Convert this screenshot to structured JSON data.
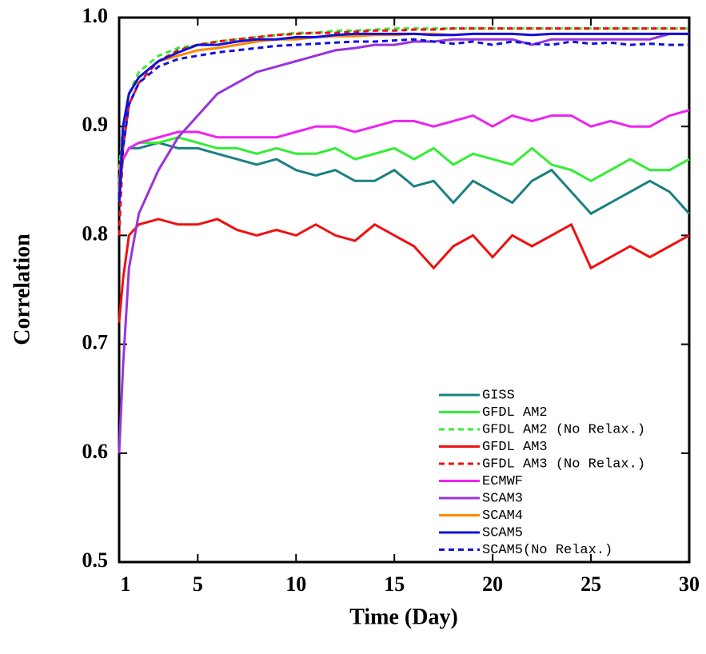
{
  "chart_data": {
    "type": "line",
    "xlabel": "Time (Day)",
    "ylabel": "Correlation",
    "x": [
      1,
      1.2,
      1.5,
      2,
      3,
      4,
      5,
      6,
      7,
      8,
      9,
      10,
      11,
      12,
      13,
      14,
      15,
      16,
      17,
      18,
      19,
      20,
      21,
      22,
      23,
      24,
      25,
      26,
      27,
      28,
      29,
      30
    ],
    "xlim": [
      1,
      30
    ],
    "xticks": [
      1,
      5,
      10,
      15,
      20,
      25,
      30
    ],
    "ylim": [
      0.5,
      1.0
    ],
    "yticks": [
      0.5,
      0.6,
      0.7,
      0.8,
      0.9,
      {
        "value": 1.0,
        "label": "1.0"
      }
    ],
    "series": [
      {
        "name": "GISS",
        "color": "#1a8080",
        "dashed": false,
        "values": [
          0.85,
          0.87,
          0.88,
          0.88,
          0.885,
          0.88,
          0.88,
          0.875,
          0.87,
          0.865,
          0.87,
          0.86,
          0.855,
          0.86,
          0.85,
          0.85,
          0.86,
          0.845,
          0.85,
          0.83,
          0.85,
          0.84,
          0.83,
          0.85,
          0.86,
          0.84,
          0.82,
          0.83,
          0.84,
          0.85,
          0.84,
          0.82
        ]
      },
      {
        "name": "GFDL AM2",
        "color": "#33ee33",
        "dashed": false,
        "values": [
          0.86,
          0.87,
          0.88,
          0.885,
          0.885,
          0.89,
          0.885,
          0.88,
          0.88,
          0.875,
          0.88,
          0.875,
          0.875,
          0.88,
          0.87,
          0.875,
          0.88,
          0.87,
          0.88,
          0.865,
          0.875,
          0.87,
          0.865,
          0.88,
          0.865,
          0.86,
          0.85,
          0.86,
          0.87,
          0.86,
          0.86,
          0.87
        ]
      },
      {
        "name": "GFDL AM2 (No Relax.)",
        "color": "#33ee33",
        "dashed": true,
        "values": [
          0.86,
          0.9,
          0.93,
          0.95,
          0.965,
          0.972,
          0.975,
          0.978,
          0.98,
          0.982,
          0.984,
          0.986,
          0.986,
          0.988,
          0.988,
          0.989,
          0.99,
          0.99,
          0.99,
          0.99,
          0.99,
          0.99,
          0.99,
          0.99,
          0.99,
          0.99,
          0.99,
          0.99,
          0.99,
          0.99,
          0.99,
          0.99
        ]
      },
      {
        "name": "GFDL AM3",
        "color": "#ee1111",
        "dashed": false,
        "values": [
          0.72,
          0.76,
          0.8,
          0.81,
          0.815,
          0.81,
          0.81,
          0.815,
          0.805,
          0.8,
          0.805,
          0.8,
          0.81,
          0.8,
          0.795,
          0.81,
          0.8,
          0.79,
          0.77,
          0.79,
          0.8,
          0.78,
          0.8,
          0.79,
          0.8,
          0.81,
          0.77,
          0.78,
          0.79,
          0.78,
          0.79,
          0.8
        ]
      },
      {
        "name": "GFDL AM3 (No Relax.)",
        "color": "#ee1111",
        "dashed": true,
        "values": [
          0.8,
          0.88,
          0.92,
          0.94,
          0.96,
          0.97,
          0.975,
          0.978,
          0.98,
          0.982,
          0.984,
          0.985,
          0.986,
          0.986,
          0.987,
          0.988,
          0.988,
          0.989,
          0.989,
          0.99,
          0.99,
          0.99,
          0.99,
          0.99,
          0.99,
          0.99,
          0.99,
          0.99,
          0.99,
          0.99,
          0.99,
          0.99
        ]
      },
      {
        "name": "ECMWF",
        "color": "#ee22ee",
        "dashed": false,
        "values": [
          0.86,
          0.87,
          0.88,
          0.885,
          0.89,
          0.895,
          0.895,
          0.89,
          0.89,
          0.89,
          0.89,
          0.895,
          0.9,
          0.9,
          0.895,
          0.9,
          0.905,
          0.905,
          0.9,
          0.905,
          0.91,
          0.9,
          0.91,
          0.905,
          0.91,
          0.91,
          0.9,
          0.905,
          0.9,
          0.9,
          0.91,
          0.915
        ]
      },
      {
        "name": "SCAM3",
        "color": "#9933dd",
        "dashed": false,
        "values": [
          0.6,
          0.68,
          0.77,
          0.82,
          0.86,
          0.89,
          0.91,
          0.93,
          0.94,
          0.95,
          0.955,
          0.96,
          0.965,
          0.97,
          0.972,
          0.975,
          0.975,
          0.978,
          0.978,
          0.98,
          0.98,
          0.98,
          0.98,
          0.975,
          0.98,
          0.98,
          0.98,
          0.98,
          0.98,
          0.98,
          0.985,
          0.985
        ]
      },
      {
        "name": "SCAM4",
        "color": "#ff8800",
        "dashed": false,
        "values": [
          0.84,
          0.9,
          0.93,
          0.945,
          0.96,
          0.965,
          0.97,
          0.972,
          0.975,
          0.978,
          0.98,
          0.98,
          0.982,
          0.983,
          0.983,
          0.984,
          0.984,
          0.985,
          0.985,
          0.984,
          0.985,
          0.985,
          0.985,
          0.984,
          0.985,
          0.985,
          0.985,
          0.985,
          0.985,
          0.985,
          0.985,
          0.985
        ]
      },
      {
        "name": "SCAM5",
        "color": "#1111dd",
        "dashed": false,
        "values": [
          0.83,
          0.9,
          0.93,
          0.945,
          0.96,
          0.968,
          0.975,
          0.975,
          0.978,
          0.98,
          0.98,
          0.982,
          0.982,
          0.984,
          0.985,
          0.985,
          0.985,
          0.985,
          0.984,
          0.984,
          0.985,
          0.985,
          0.985,
          0.984,
          0.985,
          0.985,
          0.985,
          0.985,
          0.985,
          0.985,
          0.985,
          0.985
        ]
      },
      {
        "name": "SCAM5(No Relax.)",
        "color": "#1111dd",
        "dashed": true,
        "values": [
          0.83,
          0.88,
          0.92,
          0.94,
          0.955,
          0.962,
          0.965,
          0.968,
          0.97,
          0.972,
          0.974,
          0.975,
          0.976,
          0.977,
          0.978,
          0.978,
          0.979,
          0.98,
          0.978,
          0.976,
          0.978,
          0.975,
          0.978,
          0.976,
          0.975,
          0.978,
          0.976,
          0.977,
          0.975,
          0.976,
          0.975,
          0.975
        ]
      }
    ]
  }
}
